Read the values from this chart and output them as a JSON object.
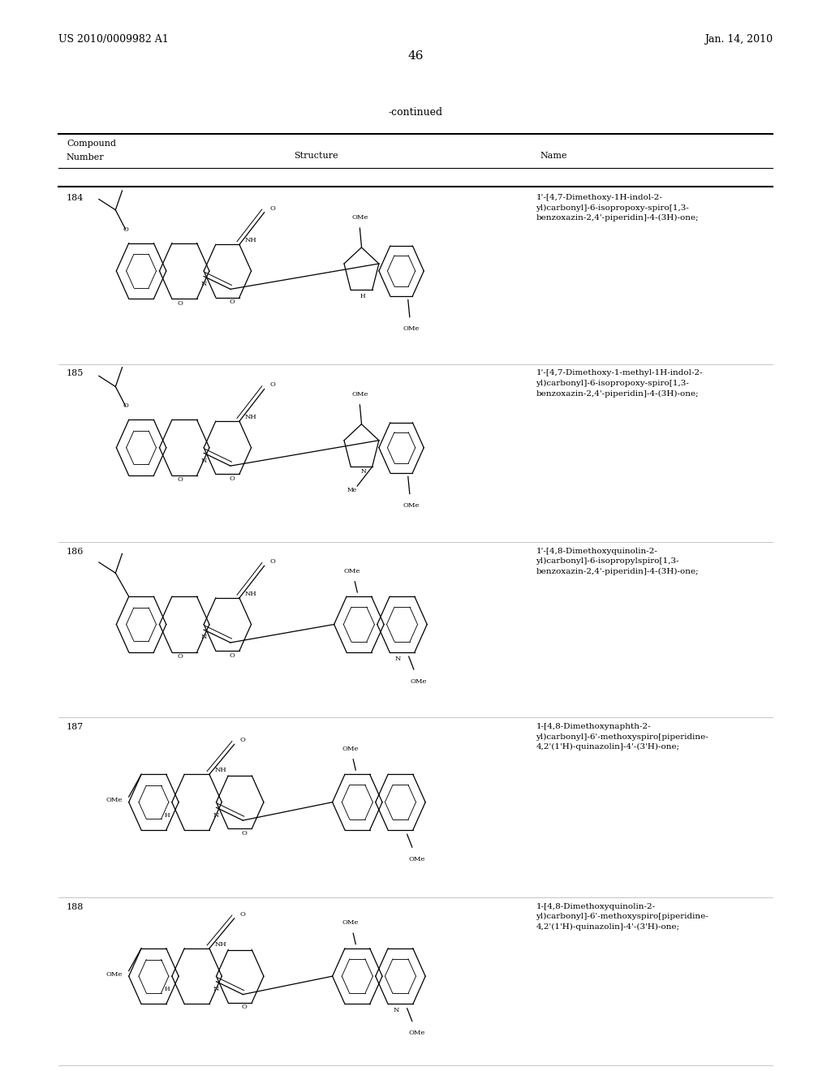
{
  "page_number": "46",
  "left_header": "US 2010/0009982 A1",
  "right_header": "Jan. 14, 2010",
  "continued_text": "-continued",
  "row_numbers": [
    "184",
    "185",
    "186",
    "187",
    "188"
  ],
  "names": [
    "1'-[4,7-Dimethoxy-1H-indol-2-\nyl)carbonyl]-6-isopropoxy-spiro[1,3-\nbenzoxazin-2,4'-piperidin]-4-(3H)-one;",
    "1'-[4,7-Dimethoxy-1-methyl-1H-indol-2-\nyl)carbonyl]-6-isopropoxy-spiro[1,3-\nbenzoxazin-2,4'-piperidin]-4-(3H)-one;",
    "1'-[4,8-Dimethoxyquinolin-2-\nyl)carbonyl]-6-isopropylspiro[1,3-\nbenzoxazin-2,4'-piperidin]-4-(3H)-one;",
    "1-[4,8-Dimethoxynaphth-2-\nyl)carbonyl]-6'-methoxyspiro[piperidine-\n4,2'(1'H)-quinazolin]-4'-(3'H)-one;",
    "1-[4,8-Dimethoxyquinolin-2-\nyl)carbonyl]-6'-methoxyspiro[piperidine-\n4,2'(1'H)-quinazolin]-4'-(3'H)-one;"
  ],
  "bg_color": "#ffffff",
  "text_color": "#000000",
  "row_tops": [
    0.824,
    0.66,
    0.494,
    0.33,
    0.162
  ],
  "row_bottoms": [
    0.66,
    0.494,
    0.33,
    0.162,
    0.005
  ]
}
